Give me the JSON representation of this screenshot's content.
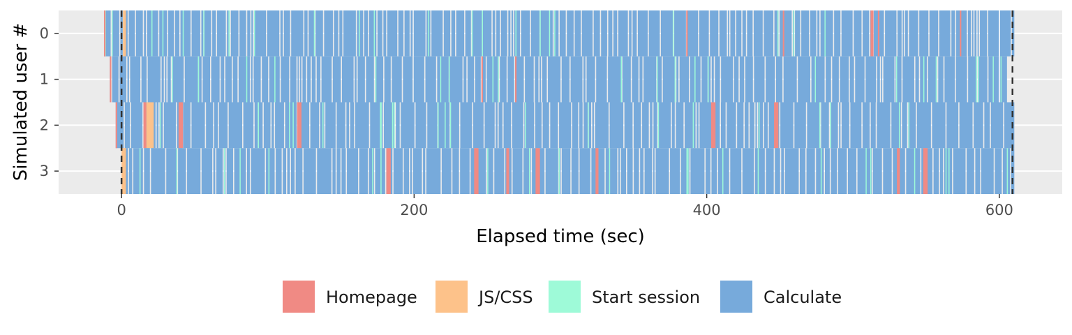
{
  "chart_data": {
    "type": "gantt",
    "title": "",
    "xlabel": "Elapsed time (sec)",
    "ylabel": "Simulated user #",
    "xlim": [
      -43,
      643
    ],
    "ylim": [
      -0.5,
      3.5
    ],
    "x_ticks": [
      0,
      200,
      400,
      600
    ],
    "y_ticks": [
      0,
      1,
      2,
      3
    ],
    "y_tick_labels": [
      "0",
      "1",
      "2",
      "3"
    ],
    "grid": true,
    "legend_position": "bottom",
    "categories": [
      {
        "key": "homepage",
        "name": "Homepage",
        "color": "#F08A84"
      },
      {
        "key": "jscss",
        "name": "JS/CSS",
        "color": "#FDC28A"
      },
      {
        "key": "session",
        "name": "Start session",
        "color": "#9EFAD8"
      },
      {
        "key": "calculate",
        "name": "Calculate",
        "color": "#77AADB"
      }
    ],
    "reference_lines": {
      "x": [
        0,
        609
      ],
      "style": "dashed"
    },
    "users": [
      {
        "user": "0",
        "start": -12,
        "end": 611,
        "gap_every": 3.6,
        "events": [
          {
            "type": "homepage",
            "start": -12,
            "end": -11
          },
          {
            "type": "jscss",
            "start": 1,
            "end": 3
          },
          {
            "type": "homepage",
            "start": 512,
            "end": 514
          },
          {
            "type": "homepage",
            "start": 573,
            "end": 574
          },
          {
            "type": "homepage",
            "start": 386,
            "end": 387
          },
          {
            "type": "homepage",
            "start": 452,
            "end": 453
          },
          {
            "type": "homepage",
            "start": 517,
            "end": 518
          }
        ]
      },
      {
        "user": "1",
        "start": -8,
        "end": 606,
        "gap_every": 3.8,
        "events": [
          {
            "type": "homepage",
            "start": -8,
            "end": -7
          },
          {
            "type": "homepage",
            "start": 246,
            "end": 247
          },
          {
            "type": "homepage",
            "start": 269,
            "end": 270
          }
        ]
      },
      {
        "user": "2",
        "start": -4,
        "end": 611,
        "gap_every": 4.0,
        "events": [
          {
            "type": "homepage",
            "start": -4,
            "end": -3
          },
          {
            "type": "homepage",
            "start": 15,
            "end": 17
          },
          {
            "type": "jscss",
            "start": 17,
            "end": 22
          },
          {
            "type": "homepage",
            "start": 39,
            "end": 42
          },
          {
            "type": "homepage",
            "start": 120,
            "end": 123
          },
          {
            "type": "homepage",
            "start": 403,
            "end": 406
          },
          {
            "type": "homepage",
            "start": 446,
            "end": 449
          }
        ]
      },
      {
        "user": "3",
        "start": 0,
        "end": 611,
        "gap_every": 4.1,
        "events": [
          {
            "type": "jscss",
            "start": 0,
            "end": 3
          },
          {
            "type": "homepage",
            "start": 181,
            "end": 184
          },
          {
            "type": "homepage",
            "start": 241,
            "end": 244
          },
          {
            "type": "homepage",
            "start": 263,
            "end": 265
          },
          {
            "type": "homepage",
            "start": 283,
            "end": 286
          },
          {
            "type": "homepage",
            "start": 324,
            "end": 326
          },
          {
            "type": "homepage",
            "start": 530,
            "end": 532
          },
          {
            "type": "homepage",
            "start": 548,
            "end": 551
          }
        ]
      }
    ]
  }
}
